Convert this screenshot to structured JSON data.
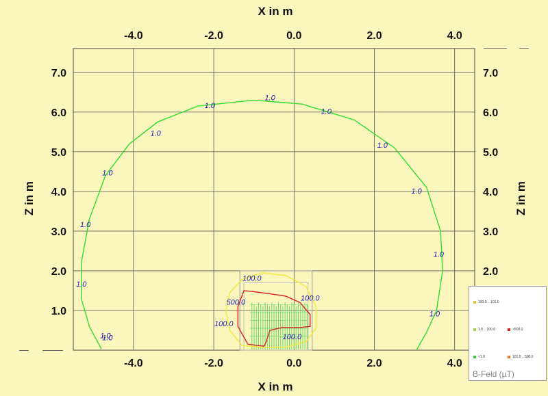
{
  "chart_data": {
    "type": "contour",
    "xlabel_top": "X in m",
    "xlabel_bottom": "X in m",
    "ylabel_left": "Z in m",
    "ylabel_right": "Z in m",
    "xlim": [
      -5.5,
      4.5
    ],
    "ylim": [
      0.0,
      7.6
    ],
    "x_ticks": [
      "-4.0",
      "-2.0",
      "0.0",
      "2.0",
      "4.0"
    ],
    "x_tick_values": [
      -4,
      -2,
      0,
      2,
      4
    ],
    "y_ticks": [
      "1.0",
      "2.0",
      "3.0",
      "4.0",
      "5.0",
      "6.0",
      "7.0"
    ],
    "y_tick_values": [
      1,
      2,
      3,
      4,
      5,
      6,
      7
    ],
    "grid": true,
    "contours": [
      {
        "level_label": "1.0",
        "color": "#2fdc2f",
        "points": [
          [
            -4.8,
            0.03
          ],
          [
            -5.1,
            0.6
          ],
          [
            -5.3,
            1.3
          ],
          [
            -5.3,
            2.2
          ],
          [
            -5.1,
            3.3
          ],
          [
            -4.7,
            4.4
          ],
          [
            -4.1,
            5.2
          ],
          [
            -3.4,
            5.75
          ],
          [
            -2.4,
            6.15
          ],
          [
            -1.0,
            6.3
          ],
          [
            0.2,
            6.2
          ],
          [
            1.5,
            5.8
          ],
          [
            2.5,
            5.1
          ],
          [
            3.3,
            4.1
          ],
          [
            3.65,
            3.0
          ],
          [
            3.7,
            2.0
          ],
          [
            3.55,
            1.0
          ],
          [
            3.3,
            0.45
          ],
          [
            3.05,
            0.0
          ]
        ],
        "label_positions": [
          [
            -2.1,
            6.1
          ],
          [
            -0.6,
            6.3
          ],
          [
            0.8,
            5.95
          ],
          [
            2.2,
            5.1
          ],
          [
            3.05,
            3.95
          ],
          [
            3.6,
            2.35
          ],
          [
            3.5,
            0.85
          ],
          [
            -3.45,
            5.4
          ],
          [
            -4.65,
            4.4
          ],
          [
            -5.2,
            3.1
          ],
          [
            -5.3,
            1.6
          ],
          [
            -4.7,
            0.3
          ],
          [
            -4.65,
            0.25
          ]
        ]
      },
      {
        "level_label": "100.0",
        "color": "#f5e83a",
        "points": [
          [
            -1.3,
            0.12
          ],
          [
            -1.6,
            0.5
          ],
          [
            -1.7,
            1.0
          ],
          [
            -1.6,
            1.45
          ],
          [
            -1.3,
            1.78
          ],
          [
            -0.8,
            1.95
          ],
          [
            -0.2,
            1.88
          ],
          [
            0.3,
            1.6
          ],
          [
            0.55,
            1.1
          ],
          [
            0.55,
            0.55
          ],
          [
            0.3,
            0.22
          ],
          [
            -0.2,
            0.08
          ],
          [
            -0.8,
            0.07
          ],
          [
            -1.3,
            0.12
          ]
        ],
        "label_positions": [
          [
            -1.05,
            1.75
          ],
          [
            0.4,
            1.25
          ],
          [
            -1.75,
            0.6
          ],
          [
            -0.05,
            0.28
          ]
        ]
      },
      {
        "level_label": "500.0",
        "color": "#d42020",
        "points": [
          [
            -1.15,
            0.15
          ],
          [
            -1.4,
            0.6
          ],
          [
            -1.4,
            1.1
          ],
          [
            -1.25,
            1.5
          ],
          [
            -1.05,
            1.48
          ],
          [
            -0.6,
            1.42
          ],
          [
            -0.2,
            1.36
          ],
          [
            0.15,
            1.2
          ],
          [
            0.4,
            0.9
          ],
          [
            0.4,
            0.6
          ],
          [
            0.15,
            0.57
          ],
          [
            -0.3,
            0.57
          ],
          [
            -0.6,
            0.5
          ],
          [
            -0.7,
            0.2
          ],
          [
            -0.75,
            0.1
          ],
          [
            -1.15,
            0.15
          ]
        ],
        "label_positions": [
          [
            -1.45,
            1.15
          ]
        ]
      }
    ],
    "legend": {
      "title": "B-Feld (µT)",
      "entries": [
        {
          "label": "100.0 .. 101.0",
          "color": "#e8c830"
        },
        {
          "label": "1.0 .. 100.0",
          "color": "#9ada50"
        },
        {
          "label": ">500.0",
          "color": "#e02020"
        },
        {
          "label": "<1.0",
          "color": "#30d030"
        },
        {
          "label": "101.0 .. 500.0",
          "color": "#e87020"
        }
      ]
    }
  }
}
